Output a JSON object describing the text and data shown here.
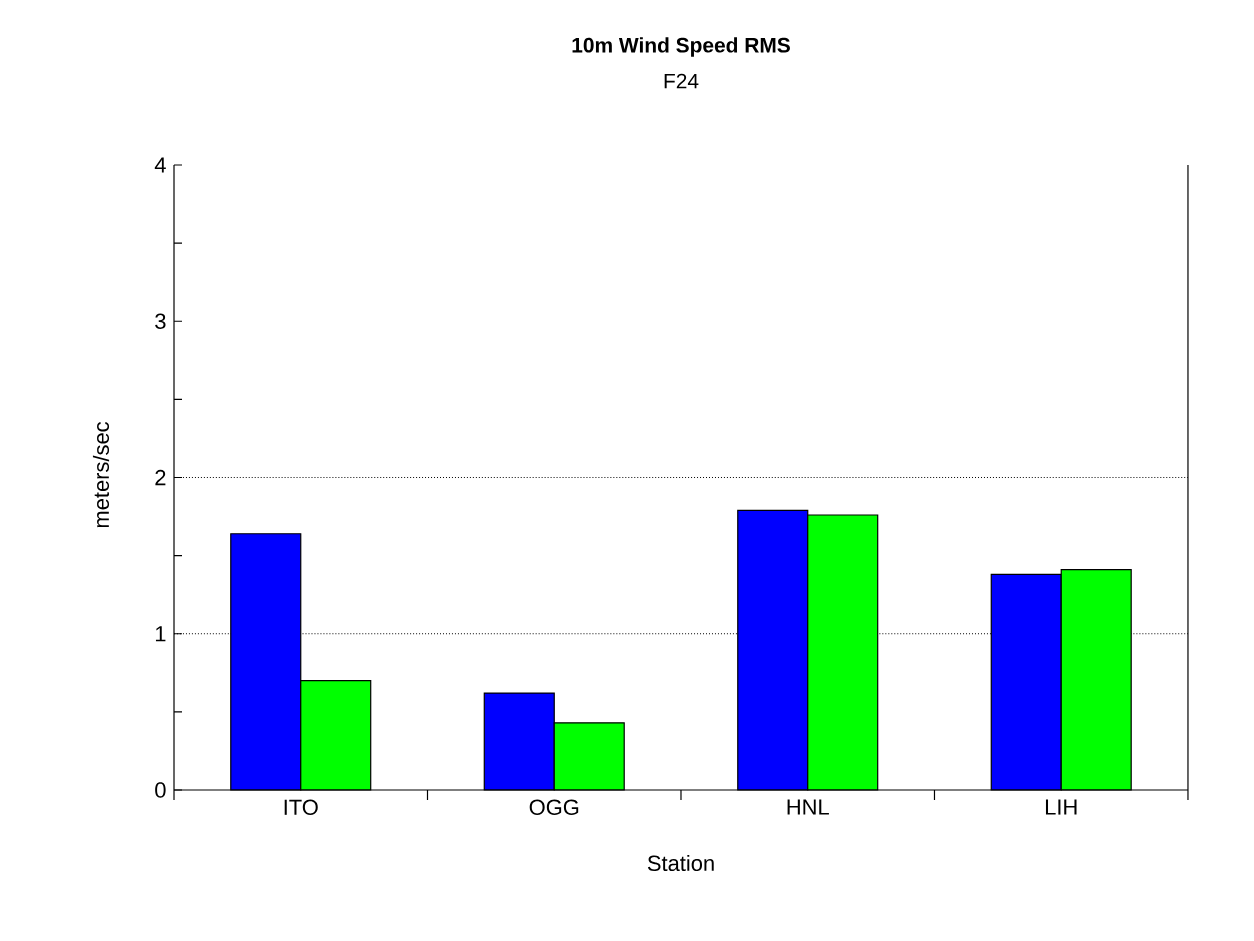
{
  "chart_data": {
    "type": "bar",
    "title": "10m Wind Speed RMS",
    "subtitle": "F24",
    "xlabel": "Station",
    "ylabel": "meters/sec",
    "categories": [
      "ITO",
      "OGG",
      "HNL",
      "LIH"
    ],
    "series": [
      {
        "color": "#0000ff",
        "values": [
          1.64,
          0.62,
          1.79,
          1.38
        ]
      },
      {
        "color": "#00ff00",
        "values": [
          0.7,
          0.43,
          1.76,
          1.41
        ]
      }
    ],
    "ylim": [
      0,
      4
    ],
    "yticks": [
      0,
      {
        "value": 0.5,
        "label": null
      },
      1,
      {
        "value": 1.5,
        "label": null
      },
      2,
      {
        "value": 2.5,
        "label": null
      },
      3,
      {
        "value": 3.5,
        "label": null
      },
      4
    ],
    "ref_lines": [
      {
        "axis": "y",
        "value": 1,
        "line_style": "dotted"
      },
      {
        "axis": "y",
        "value": 2,
        "line_style": "dotted"
      }
    ]
  }
}
